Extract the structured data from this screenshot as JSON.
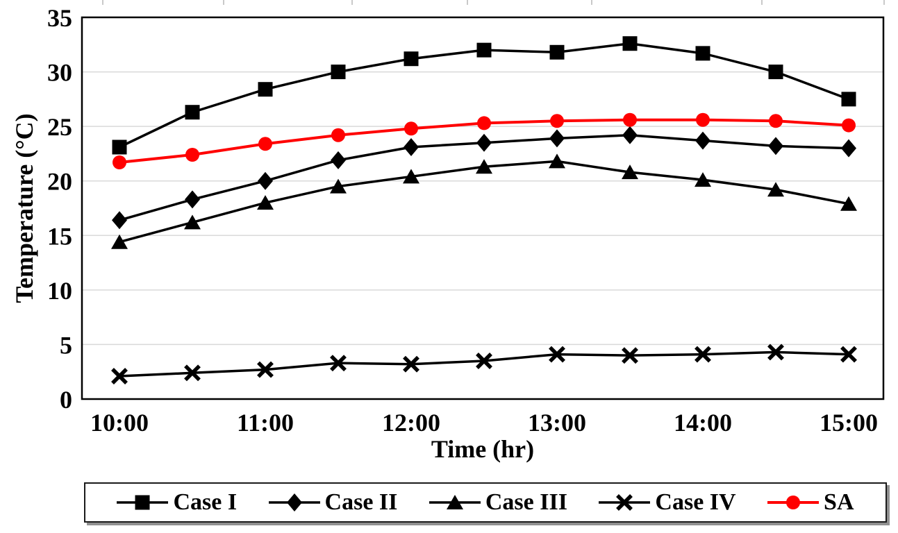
{
  "chart_data": {
    "type": "line",
    "title": "",
    "xlabel": "Time (hr)",
    "ylabel": "Temperature (°C)",
    "x_categories": [
      "10:00",
      "10:30",
      "11:00",
      "11:30",
      "12:00",
      "12:30",
      "13:00",
      "13:30",
      "14:00",
      "14:30",
      "15:00"
    ],
    "x_tick_labels": [
      "10:00",
      "11:00",
      "12:00",
      "13:00",
      "14:00",
      "15:00"
    ],
    "y_ticks": [
      0,
      5,
      10,
      15,
      20,
      25,
      30,
      35
    ],
    "ylim": [
      0,
      35
    ],
    "grid": "horizontal-light-gray",
    "legend_position": "bottom",
    "series": [
      {
        "name": "Case I",
        "marker": "square",
        "color": "#000000",
        "values": [
          23.1,
          26.3,
          28.4,
          30.0,
          31.2,
          32.0,
          31.8,
          32.6,
          31.7,
          30.0,
          27.5
        ]
      },
      {
        "name": "Case II",
        "marker": "diamond",
        "color": "#000000",
        "values": [
          16.4,
          18.3,
          20.0,
          21.9,
          23.1,
          23.5,
          23.9,
          24.2,
          23.7,
          23.2,
          23.0
        ]
      },
      {
        "name": "Case III",
        "marker": "triangle",
        "color": "#000000",
        "values": [
          14.4,
          16.2,
          18.0,
          19.5,
          20.4,
          21.3,
          21.8,
          20.8,
          20.1,
          19.2,
          17.9
        ]
      },
      {
        "name": "Case IV",
        "marker": "x",
        "color": "#000000",
        "values": [
          2.1,
          2.4,
          2.7,
          3.3,
          3.2,
          3.5,
          4.1,
          4.0,
          4.1,
          4.3,
          4.1
        ]
      },
      {
        "name": "SA",
        "marker": "circle",
        "color": "#FF0000",
        "values": [
          21.7,
          22.4,
          23.4,
          24.2,
          24.8,
          25.3,
          25.5,
          25.6,
          25.6,
          25.5,
          25.1
        ]
      }
    ],
    "layout": {
      "grid_color": "#D9D9D9",
      "plot_border_color": "#000000",
      "top_tick_marks_x": [
        148,
        322,
        507,
        673,
        852,
        1097,
        1273
      ]
    }
  }
}
